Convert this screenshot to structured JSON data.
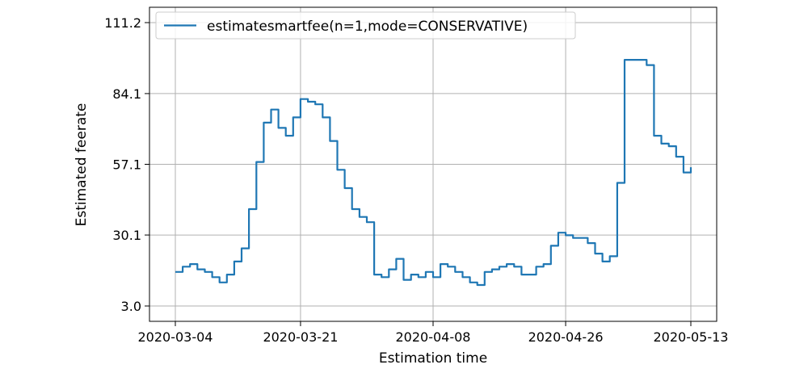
{
  "chart_data": {
    "type": "line",
    "title": "",
    "xlabel": "Estimation time",
    "ylabel": "Estimated feerate",
    "x_ticks": [
      "2020-03-04",
      "2020-03-21",
      "2020-04-08",
      "2020-04-26",
      "2020-05-13"
    ],
    "y_ticks": [
      "3.0",
      "30.1",
      "57.1",
      "84.1",
      "111.2"
    ],
    "xlim": [
      "2020-03-04",
      "2020-05-13"
    ],
    "ylim": [
      3.0,
      111.2
    ],
    "grid": true,
    "legend_position": "top-left",
    "series": [
      {
        "name": "estimatesmartfee(n=1,mode=CONSERVATIVE)",
        "color": "#1f77b4",
        "x": [
          "2020-03-04",
          "2020-03-05",
          "2020-03-06",
          "2020-03-07",
          "2020-03-08",
          "2020-03-09",
          "2020-03-10",
          "2020-03-11",
          "2020-03-12",
          "2020-03-13",
          "2020-03-14",
          "2020-03-15",
          "2020-03-16",
          "2020-03-17",
          "2020-03-18",
          "2020-03-19",
          "2020-03-20",
          "2020-03-21",
          "2020-03-22",
          "2020-03-23",
          "2020-03-24",
          "2020-03-25",
          "2020-03-26",
          "2020-03-27",
          "2020-03-28",
          "2020-03-29",
          "2020-03-30",
          "2020-03-31",
          "2020-04-01",
          "2020-04-02",
          "2020-04-03",
          "2020-04-04",
          "2020-04-05",
          "2020-04-06",
          "2020-04-07",
          "2020-04-08",
          "2020-04-09",
          "2020-04-10",
          "2020-04-11",
          "2020-04-12",
          "2020-04-13",
          "2020-04-14",
          "2020-04-15",
          "2020-04-16",
          "2020-04-17",
          "2020-04-18",
          "2020-04-19",
          "2020-04-20",
          "2020-04-21",
          "2020-04-22",
          "2020-04-23",
          "2020-04-24",
          "2020-04-25",
          "2020-04-26",
          "2020-04-27",
          "2020-04-28",
          "2020-04-29",
          "2020-04-30",
          "2020-05-01",
          "2020-05-02",
          "2020-05-03",
          "2020-05-04",
          "2020-05-05",
          "2020-05-06",
          "2020-05-07",
          "2020-05-08",
          "2020-05-09",
          "2020-05-10",
          "2020-05-11",
          "2020-05-12",
          "2020-05-13"
        ],
        "y": [
          16,
          18,
          19,
          17,
          16,
          14,
          12,
          15,
          20,
          25,
          40,
          58,
          73,
          78,
          71,
          68,
          75,
          82,
          81,
          80,
          75,
          66,
          55,
          48,
          40,
          37,
          35,
          15,
          14,
          17,
          21,
          13,
          15,
          14,
          16,
          14,
          19,
          18,
          16,
          14,
          12,
          11,
          16,
          17,
          18,
          19,
          18,
          15,
          15,
          18,
          19,
          26,
          31,
          30,
          29,
          29,
          27,
          23,
          20,
          22,
          50,
          97,
          97,
          97,
          95,
          68,
          65,
          64,
          60,
          54,
          56
        ]
      }
    ]
  }
}
